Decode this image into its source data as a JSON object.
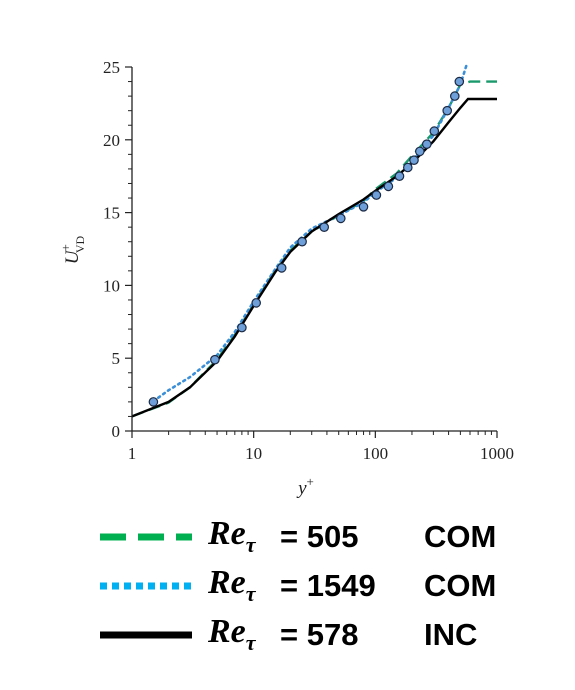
{
  "chart_data": {
    "type": "line",
    "xscale": "log",
    "xlim": [
      1,
      1000
    ],
    "ylim": [
      0,
      25
    ],
    "xticks": [
      1,
      10,
      100,
      1000
    ],
    "xtick_labels": [
      "1",
      "10",
      "100",
      "1000"
    ],
    "yticks": [
      0,
      5,
      10,
      15,
      20,
      25
    ],
    "ytick_labels": [
      "0",
      "5",
      "10",
      "15",
      "20",
      "25"
    ],
    "xlabel": "y",
    "xlabel_sup": "+",
    "ylabel": "U",
    "ylabel_sup": "+",
    "ylabel_sub": "VD",
    "series": [
      {
        "name_base": "Re",
        "name_sub": "τ",
        "value": "= 505",
        "tag": "COM",
        "style": "dashed",
        "color": "#1a9a6c",
        "legend_color": "#00b050",
        "x": [
          1,
          2,
          3,
          5,
          7,
          10,
          15,
          20,
          30,
          50,
          80,
          100,
          150,
          200,
          300,
          400,
          500,
          600,
          700,
          800,
          1000
        ],
        "y": [
          1.0,
          1.95,
          3.0,
          4.9,
          6.6,
          8.7,
          11.0,
          12.4,
          13.7,
          14.8,
          15.8,
          16.6,
          17.7,
          18.9,
          20.5,
          22.2,
          23.8,
          24.0,
          24.0,
          24.0,
          24.0
        ]
      },
      {
        "name_base": "Re",
        "name_sub": "τ",
        "value": "= 1549",
        "tag": "COM",
        "style": "dotted",
        "color": "#3a8fd8",
        "legend_color": "#00b0f0",
        "x": [
          1.5,
          2,
          3,
          5,
          7,
          10,
          15,
          20,
          30,
          50,
          80,
          100,
          150,
          200,
          300,
          400,
          500,
          560
        ],
        "y": [
          2.05,
          2.8,
          3.7,
          5.2,
          6.8,
          8.9,
          11.1,
          12.6,
          13.9,
          14.8,
          15.7,
          16.4,
          17.4,
          18.5,
          20.3,
          22.2,
          23.8,
          25.1
        ],
        "markers_x": [
          1.5,
          4.8,
          8,
          10.5,
          17,
          25,
          38,
          52,
          80,
          102,
          128,
          158,
          185,
          208,
          232,
          265,
          305,
          390,
          450,
          490
        ],
        "markers_y": [
          2.0,
          4.9,
          7.1,
          8.8,
          11.2,
          13.0,
          14.0,
          14.6,
          15.4,
          16.2,
          16.8,
          17.5,
          18.1,
          18.6,
          19.2,
          19.7,
          20.6,
          22.0,
          23.0,
          24.0
        ]
      },
      {
        "name_base": "Re",
        "name_sub": "τ",
        "value": "= 578",
        "tag": "INC",
        "style": "solid",
        "color": "#000000",
        "legend_color": "#000000",
        "x": [
          1,
          2,
          3,
          5,
          7,
          10,
          15,
          20,
          30,
          50,
          80,
          100,
          150,
          200,
          300,
          400,
          500,
          578,
          700,
          1000
        ],
        "y": [
          1.0,
          2.0,
          3.0,
          4.8,
          6.5,
          8.6,
          10.9,
          12.3,
          13.7,
          14.9,
          15.9,
          16.5,
          17.5,
          18.4,
          19.9,
          21.2,
          22.2,
          22.8,
          22.8,
          22.8
        ]
      }
    ]
  }
}
